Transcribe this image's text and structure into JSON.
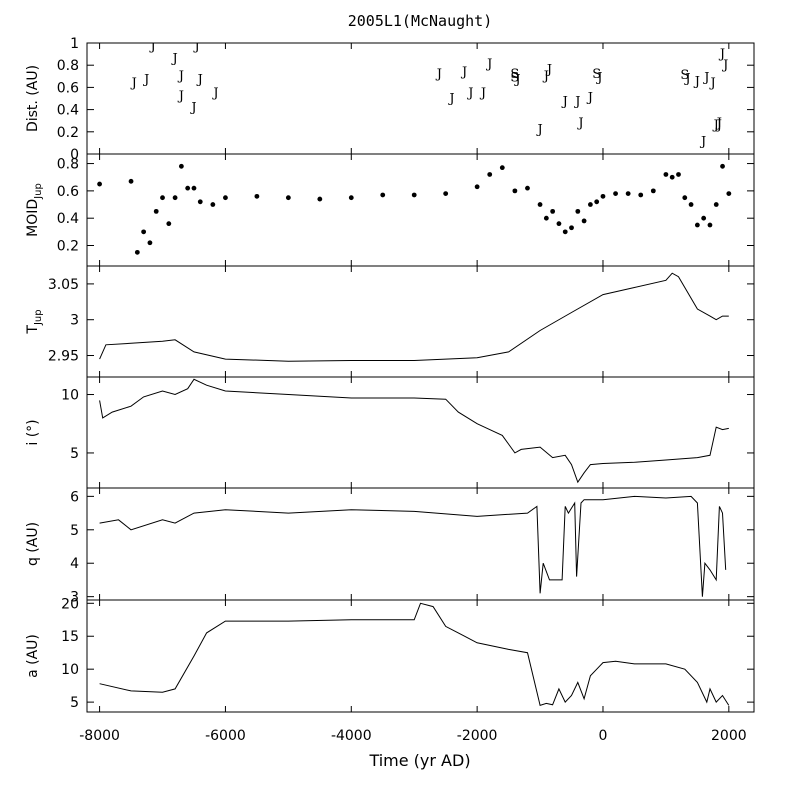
{
  "chart_data": {
    "type": "line",
    "title": "2005L1(McNaught)",
    "xlabel": "Time (yr AD)",
    "xlim": [
      -8200,
      2400
    ],
    "xticks": [
      -8000,
      -6000,
      -4000,
      -2000,
      0,
      2000
    ],
    "xtick_labels": [
      "-8000",
      "-6000",
      "-4000",
      "-2000",
      "0",
      "2000"
    ],
    "panels": [
      {
        "id": "dist",
        "ylabel": "Dist. (AU)",
        "ylim": [
          0,
          1
        ],
        "yticks": [
          0,
          0.2,
          0.4,
          0.6,
          0.8,
          1
        ],
        "ytick_labels": [
          "0",
          "0.2",
          "0.4",
          "0.6",
          "0.8",
          "1"
        ],
        "kind": "markers",
        "points": [
          {
            "x": -7450,
            "y": 0.65,
            "label": "J"
          },
          {
            "x": -7250,
            "y": 0.68,
            "label": "J"
          },
          {
            "x": -7150,
            "y": 0.98,
            "label": "J"
          },
          {
            "x": -6800,
            "y": 0.87,
            "label": "J"
          },
          {
            "x": -6700,
            "y": 0.71,
            "label": "J"
          },
          {
            "x": -6700,
            "y": 0.53,
            "label": "J"
          },
          {
            "x": -6500,
            "y": 0.43,
            "label": "J"
          },
          {
            "x": -6450,
            "y": 0.98,
            "label": "J"
          },
          {
            "x": -6400,
            "y": 0.68,
            "label": "J"
          },
          {
            "x": -6150,
            "y": 0.56,
            "label": "J"
          },
          {
            "x": -2600,
            "y": 0.73,
            "label": "J"
          },
          {
            "x": -2400,
            "y": 0.51,
            "label": "J"
          },
          {
            "x": -2200,
            "y": 0.75,
            "label": "J"
          },
          {
            "x": -2100,
            "y": 0.56,
            "label": "J"
          },
          {
            "x": -1900,
            "y": 0.56,
            "label": "J"
          },
          {
            "x": -1800,
            "y": 0.82,
            "label": "J"
          },
          {
            "x": -1400,
            "y": 0.73,
            "label": "S"
          },
          {
            "x": -1400,
            "y": 0.7,
            "label": "S"
          },
          {
            "x": -1350,
            "y": 0.68,
            "label": "J"
          },
          {
            "x": -1000,
            "y": 0.23,
            "label": "J"
          },
          {
            "x": -900,
            "y": 0.71,
            "label": "J"
          },
          {
            "x": -850,
            "y": 0.77,
            "label": "J"
          },
          {
            "x": -600,
            "y": 0.48,
            "label": "J"
          },
          {
            "x": -400,
            "y": 0.48,
            "label": "J"
          },
          {
            "x": -350,
            "y": 0.29,
            "label": "J"
          },
          {
            "x": -200,
            "y": 0.52,
            "label": "J"
          },
          {
            "x": -100,
            "y": 0.73,
            "label": "S"
          },
          {
            "x": -50,
            "y": 0.7,
            "label": "J"
          },
          {
            "x": 1300,
            "y": 0.72,
            "label": "S"
          },
          {
            "x": 1350,
            "y": 0.69,
            "label": "J"
          },
          {
            "x": 1500,
            "y": 0.66,
            "label": "J"
          },
          {
            "x": 1600,
            "y": 0.12,
            "label": "J"
          },
          {
            "x": 1650,
            "y": 0.7,
            "label": "J"
          },
          {
            "x": 1750,
            "y": 0.65,
            "label": "J"
          },
          {
            "x": 1800,
            "y": 0.27,
            "label": "J"
          },
          {
            "x": 1850,
            "y": 0.27,
            "label": "J"
          },
          {
            "x": 1850,
            "y": 0.29,
            "label": "J"
          },
          {
            "x": 1900,
            "y": 0.91,
            "label": "J"
          },
          {
            "x": 1950,
            "y": 0.81,
            "label": "J"
          },
          {
            "x": 1850,
            "y": -0.05,
            "label": "J"
          }
        ]
      },
      {
        "id": "moid",
        "ylabel": "MOID",
        "ylabel_sub": "Jup",
        "ylim": [
          0.05,
          0.87
        ],
        "yticks": [
          0.2,
          0.4,
          0.6,
          0.8
        ],
        "ytick_labels": [
          "0.2",
          "0.4",
          "0.6",
          "0.8"
        ],
        "kind": "dots",
        "x": [
          -8000,
          -7500,
          -7400,
          -7300,
          -7200,
          -7100,
          -7000,
          -6900,
          -6800,
          -6700,
          -6600,
          -6500,
          -6400,
          -6200,
          -6000,
          -5500,
          -5000,
          -4500,
          -4000,
          -3500,
          -3000,
          -2500,
          -2000,
          -1800,
          -1600,
          -1400,
          -1200,
          -1000,
          -900,
          -800,
          -700,
          -600,
          -500,
          -400,
          -300,
          -200,
          -100,
          0,
          200,
          400,
          600,
          800,
          1000,
          1100,
          1200,
          1300,
          1400,
          1500,
          1600,
          1700,
          1800,
          1900,
          2000
        ],
        "y": [
          0.65,
          0.67,
          0.15,
          0.3,
          0.22,
          0.45,
          0.55,
          0.36,
          0.55,
          0.78,
          0.62,
          0.62,
          0.52,
          0.5,
          0.55,
          0.56,
          0.55,
          0.54,
          0.55,
          0.57,
          0.57,
          0.58,
          0.63,
          0.72,
          0.77,
          0.6,
          0.62,
          0.5,
          0.4,
          0.45,
          0.36,
          0.3,
          0.33,
          0.45,
          0.38,
          0.5,
          0.52,
          0.56,
          0.58,
          0.58,
          0.57,
          0.6,
          0.72,
          0.7,
          0.72,
          0.55,
          0.5,
          0.35,
          0.4,
          0.35,
          0.5,
          0.78,
          0.58
        ]
      },
      {
        "id": "tjup",
        "ylabel": "T",
        "ylabel_sub": "Jup",
        "ylim": [
          2.92,
          3.075
        ],
        "yticks": [
          2.95,
          3,
          3.05
        ],
        "ytick_labels": [
          "2.95",
          "3",
          "3.05"
        ],
        "kind": "line",
        "x": [
          -8000,
          -7900,
          -7500,
          -7000,
          -6800,
          -6500,
          -6000,
          -5000,
          -4000,
          -3000,
          -2000,
          -1500,
          -1000,
          -500,
          0,
          500,
          1000,
          1100,
          1200,
          1300,
          1500,
          1700,
          1800,
          1900,
          2000
        ],
        "y": [
          2.945,
          2.965,
          2.967,
          2.97,
          2.972,
          2.955,
          2.945,
          2.942,
          2.943,
          2.943,
          2.947,
          2.955,
          2.985,
          3.01,
          3.035,
          3.045,
          3.055,
          3.065,
          3.06,
          3.045,
          3.015,
          3.005,
          3.0,
          3.005,
          3.005
        ]
      },
      {
        "id": "incl",
        "ylabel": "i  (°)",
        "ylim": [
          2,
          11.5
        ],
        "yticks": [
          5,
          10
        ],
        "ytick_labels": [
          "5",
          "10"
        ],
        "kind": "line",
        "x": [
          -8000,
          -7950,
          -7800,
          -7500,
          -7300,
          -7000,
          -6800,
          -6600,
          -6500,
          -6300,
          -6000,
          -5000,
          -4000,
          -3000,
          -2500,
          -2300,
          -2000,
          -1800,
          -1600,
          -1400,
          -1300,
          -1000,
          -800,
          -600,
          -500,
          -400,
          -300,
          -200,
          0,
          500,
          1000,
          1500,
          1700,
          1800,
          1900,
          2000
        ],
        "y": [
          9.5,
          8.0,
          8.5,
          9.0,
          9.8,
          10.3,
          10.0,
          10.5,
          11.3,
          10.8,
          10.3,
          10.0,
          9.7,
          9.7,
          9.6,
          8.5,
          7.5,
          7.0,
          6.5,
          5.0,
          5.3,
          5.5,
          4.6,
          4.8,
          4.0,
          2.5,
          3.3,
          4.0,
          4.1,
          4.2,
          4.4,
          4.6,
          4.8,
          7.2,
          7.0,
          7.1
        ]
      },
      {
        "id": "q",
        "ylabel": "q (AU)",
        "ylim": [
          2.9,
          6.25
        ],
        "yticks": [
          3,
          4,
          5,
          6
        ],
        "ytick_labels": [
          "3",
          "4",
          "5",
          "6"
        ],
        "kind": "line",
        "x": [
          -8000,
          -7700,
          -7500,
          -7000,
          -6800,
          -6500,
          -6000,
          -5000,
          -4000,
          -3000,
          -2000,
          -1200,
          -1050,
          -1000,
          -950,
          -850,
          -750,
          -650,
          -600,
          -550,
          -450,
          -420,
          -350,
          -300,
          -200,
          0,
          500,
          1000,
          1400,
          1500,
          1580,
          1620,
          1700,
          1800,
          1850,
          1900,
          1950
        ],
        "y": [
          5.2,
          5.3,
          5.0,
          5.3,
          5.2,
          5.5,
          5.6,
          5.5,
          5.6,
          5.55,
          5.4,
          5.5,
          5.7,
          3.1,
          4.0,
          3.5,
          3.5,
          3.5,
          5.7,
          5.5,
          5.8,
          3.6,
          5.8,
          5.9,
          5.9,
          5.9,
          6.0,
          5.95,
          6.0,
          5.8,
          3.0,
          4.0,
          3.8,
          3.5,
          5.7,
          5.5,
          3.8
        ]
      },
      {
        "id": "a",
        "ylabel": "a (AU)",
        "ylim": [
          3.5,
          20.5
        ],
        "yticks": [
          5,
          10,
          15,
          20
        ],
        "ytick_labels": [
          "5",
          "10",
          "15",
          "20"
        ],
        "kind": "line",
        "x": [
          -8000,
          -7500,
          -7000,
          -6800,
          -6500,
          -6300,
          -6000,
          -5000,
          -4000,
          -3000,
          -2900,
          -2700,
          -2500,
          -2300,
          -2000,
          -1500,
          -1200,
          -1000,
          -900,
          -800,
          -700,
          -600,
          -500,
          -400,
          -300,
          -200,
          -100,
          0,
          200,
          500,
          1000,
          1300,
          1500,
          1650,
          1700,
          1800,
          1900,
          2000
        ],
        "y": [
          7.8,
          6.7,
          6.5,
          7.0,
          12.0,
          15.5,
          17.3,
          17.3,
          17.5,
          17.5,
          20.0,
          19.5,
          16.5,
          15.5,
          14.0,
          13.0,
          12.5,
          4.5,
          4.8,
          4.6,
          7.0,
          5.0,
          6.0,
          8.0,
          5.5,
          9.0,
          10.0,
          11.0,
          11.2,
          10.8,
          10.8,
          10.0,
          8.0,
          5.0,
          7.0,
          5.0,
          6.0,
          4.5
        ]
      }
    ]
  }
}
